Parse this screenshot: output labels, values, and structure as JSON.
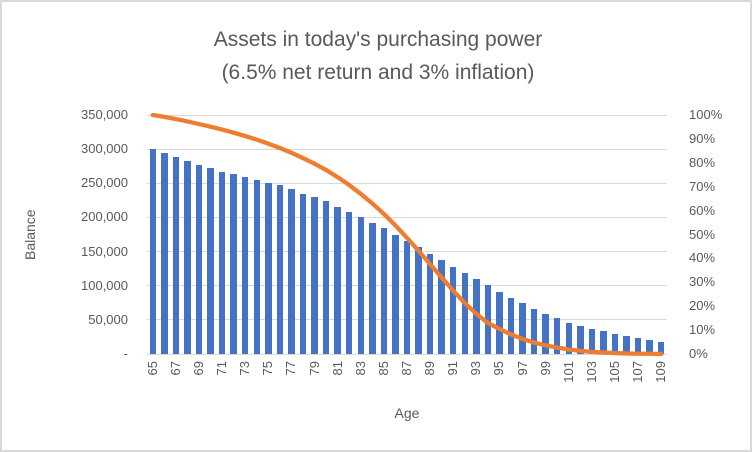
{
  "chart_data": {
    "type": "combo (bar + line)",
    "title_line1": "Assets in today's purchasing power",
    "title_line2": "(6.5% net return and 3% inflation)",
    "x_label": "Age",
    "x": [
      65,
      66,
      67,
      68,
      69,
      70,
      71,
      72,
      73,
      74,
      75,
      76,
      77,
      78,
      79,
      80,
      81,
      82,
      83,
      84,
      85,
      86,
      87,
      88,
      89,
      90,
      91,
      92,
      93,
      94,
      95,
      96,
      97,
      98,
      99,
      100,
      101,
      102,
      103,
      104,
      105,
      106,
      107,
      108,
      109
    ],
    "x_tick_labels": [
      "65",
      "67",
      "69",
      "71",
      "73",
      "75",
      "77",
      "79",
      "81",
      "83",
      "85",
      "87",
      "89",
      "91",
      "93",
      "95",
      "97",
      "99",
      "101",
      "103",
      "105",
      "107",
      "109"
    ],
    "left_axis": {
      "title": "Balance",
      "min": 0,
      "max": 350000,
      "tick_step": 50000,
      "tick_labels": [
        "350,000",
        "300,000",
        "250,000",
        "200,000",
        "150,000",
        "100,000",
        "50,000",
        "-"
      ]
    },
    "right_axis": {
      "min": 0,
      "max": 100,
      "tick_step": 10,
      "tick_labels": [
        "100%",
        "90%",
        "80%",
        "70%",
        "60%",
        "50%",
        "40%",
        "30%",
        "20%",
        "10%",
        "0%"
      ]
    },
    "grid": true,
    "legend": "none",
    "series": [
      {
        "name": "balance-bars",
        "type": "bar",
        "axis": "left",
        "color": "#4472C4",
        "values": [
          300000,
          294000,
          288000,
          283000,
          277000,
          272000,
          267000,
          263000,
          259000,
          255000,
          251000,
          247000,
          241000,
          235000,
          230000,
          224000,
          215000,
          208000,
          201000,
          192000,
          184000,
          175000,
          166000,
          156000,
          147000,
          137000,
          127000,
          118000,
          110000,
          101000,
          91000,
          82000,
          74000,
          66000,
          59000,
          53000,
          46000,
          41000,
          37000,
          33000,
          29000,
          26000,
          24000,
          21000,
          18000
        ]
      },
      {
        "name": "percent-line",
        "type": "line",
        "axis": "right",
        "color": "#ED7D31",
        "values": [
          100,
          99.2,
          98.3,
          97.3,
          96.2,
          95.1,
          93.9,
          92.6,
          91.2,
          89.7,
          88.0,
          86.2,
          84.2,
          82.0,
          79.6,
          77.0,
          74.0,
          70.7,
          67.0,
          63.0,
          58.6,
          53.8,
          48.6,
          43.2,
          37.6,
          32.0,
          26.5,
          21.3,
          16.8,
          13.0,
          10.5,
          8.2,
          6.3,
          4.8,
          3.6,
          2.7,
          1.9,
          1.3,
          0.9,
          0.6,
          0.4,
          0.2,
          0.1,
          0.1,
          0.0
        ]
      }
    ]
  },
  "colors": {
    "text": "#595959",
    "gridline": "#D9D9D9",
    "axis_line": "#D9D9D9",
    "background": "#FFFFFF",
    "border": "#D9D9D9",
    "bar": "#4472C4",
    "line": "#ED7D31"
  }
}
